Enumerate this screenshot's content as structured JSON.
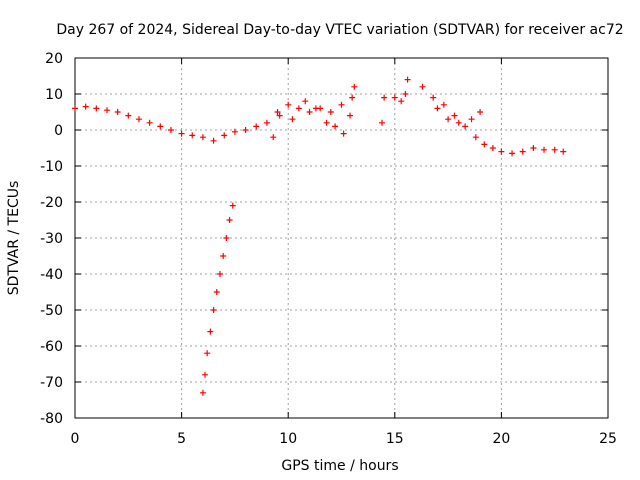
{
  "chart_data": {
    "type": "scatter",
    "title": "Day 267 of 2024, Sidereal Day-to-day VTEC variation (SDTVAR) for receiver ac72",
    "xlabel": "GPS time / hours",
    "ylabel": "SDTVAR / TECUs",
    "xlim": [
      0,
      25
    ],
    "ylim": [
      -80,
      20
    ],
    "xticks": [
      0,
      5,
      10,
      15,
      20,
      25
    ],
    "yticks": [
      20,
      10,
      0,
      -10,
      -20,
      -30,
      -40,
      -50,
      -60,
      -70,
      -80
    ],
    "grid": true,
    "marker": "+",
    "color": "#ff0000",
    "series": [
      {
        "name": "main-track",
        "x": [
          0.0,
          0.5,
          1.0,
          1.5,
          2.0,
          2.5,
          3.0,
          3.5,
          4.0,
          4.5,
          5.0,
          5.5,
          6.0,
          6.5,
          7.0,
          7.5,
          8.0,
          8.5,
          9.0,
          9.5,
          10.0,
          10.5,
          11.0,
          11.5,
          12.0,
          12.5,
          13.0,
          14.5,
          15.0,
          15.5,
          16.3,
          16.8,
          17.3,
          17.8,
          18.3,
          18.8,
          19.2,
          19.6,
          20.0,
          20.5,
          21.0,
          21.5,
          22.0,
          22.5,
          22.9
        ],
        "y": [
          6,
          6.5,
          6,
          5.5,
          5,
          4,
          3,
          2,
          1,
          0,
          -1,
          -1.5,
          -2,
          -3,
          -1.5,
          -0.5,
          0,
          1,
          2,
          5,
          7,
          6,
          5,
          6,
          5,
          7,
          9,
          9,
          9,
          10,
          12,
          9,
          7,
          4,
          1,
          -2,
          -4,
          -5,
          -6,
          -6.5,
          -6,
          -5,
          -5.5,
          -5.5,
          -6
        ]
      },
      {
        "name": "scatter-cluster",
        "x": [
          9.3,
          9.6,
          10.2,
          10.8,
          11.3,
          11.8,
          12.2,
          12.6,
          12.9,
          13.1,
          14.4,
          15.3,
          15.6,
          17.0,
          17.5,
          18.0,
          18.6,
          19.0
        ],
        "y": [
          -2,
          4,
          3,
          8,
          6,
          2,
          1,
          -1,
          4,
          12,
          2,
          8,
          14,
          6,
          3,
          2,
          3,
          5
        ]
      },
      {
        "name": "descending-arc",
        "x": [
          6.0,
          6.1,
          6.2,
          6.35,
          6.5,
          6.65,
          6.8,
          6.95,
          7.1,
          7.25,
          7.4
        ],
        "y": [
          -73,
          -68,
          -62,
          -56,
          -50,
          -45,
          -40,
          -35,
          -30,
          -25,
          -21
        ]
      }
    ]
  }
}
